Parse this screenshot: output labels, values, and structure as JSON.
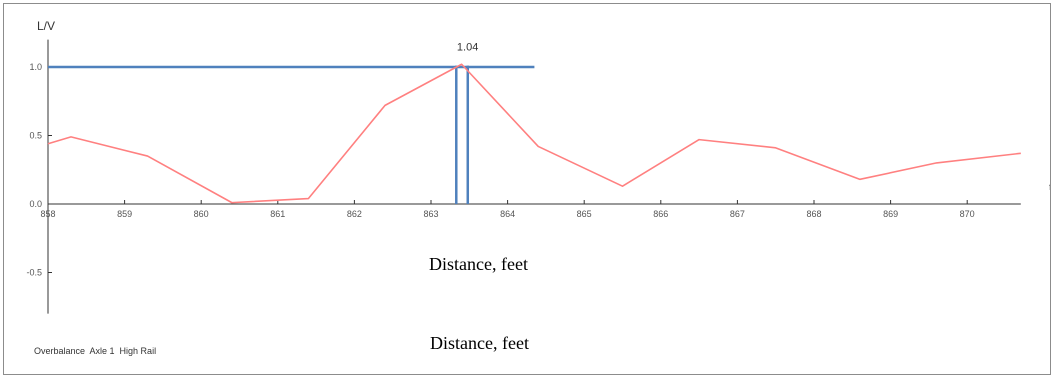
{
  "chart_data": {
    "type": "line",
    "ylabel": "L/V",
    "xunit": "ft",
    "xlim": [
      858,
      870.7
    ],
    "ylim": [
      -0.8,
      1.2
    ],
    "x_ticks": [
      858,
      859,
      860,
      861,
      862,
      863,
      864,
      865,
      866,
      867,
      868,
      869,
      870
    ],
    "y_ticks": [
      {
        "value": 1.0,
        "label": "1.0"
      },
      {
        "value": 0.5,
        "label": "0.5"
      },
      {
        "value": 0.0,
        "label": "0.0"
      },
      {
        "value": -0.5,
        "label": "-0.5"
      }
    ],
    "series": [
      {
        "color": "#ff8080",
        "x": [
          858,
          858.3,
          859.3,
          860.4,
          861.4,
          862.4,
          863.4,
          864.4,
          865.5,
          866.5,
          867.5,
          868.6,
          869.6,
          870.7
        ],
        "y": [
          0.44,
          0.49,
          0.35,
          0.01,
          0.04,
          0.72,
          1.02,
          0.42,
          0.13,
          0.47,
          0.41,
          0.18,
          0.3,
          0.37
        ]
      }
    ],
    "reference_lines": {
      "color": "#4f81bd",
      "horizontal": {
        "y": 1.0,
        "x_end": 864.35
      },
      "vertical": [
        863.33,
        863.48
      ]
    },
    "peak_annotation": {
      "label": "1.04",
      "x": 863.4,
      "y": 1.04
    },
    "xlabel_top": "Distance, feet",
    "xlabel_bottom": "Distance, feet",
    "caption": "Overbalance  Axle 1  High Rail",
    "colors": {
      "axis": "#333333",
      "tick_text": "#555555"
    }
  }
}
